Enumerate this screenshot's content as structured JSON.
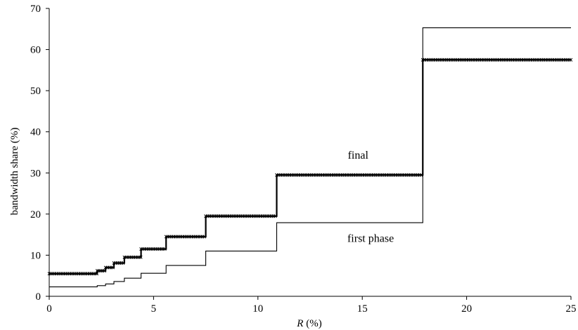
{
  "chart_data": {
    "type": "line",
    "xlabel_italic": "R",
    "xlabel_suffix": " (%)",
    "ylabel": "bandwidth share (%)",
    "xlim": [
      0,
      25
    ],
    "ylim": [
      0,
      70
    ],
    "xticks": [
      "0",
      "5",
      "10",
      "15",
      "20",
      "25"
    ],
    "yticks": [
      "0",
      "10",
      "20",
      "30",
      "40",
      "50",
      "60",
      "70"
    ],
    "grid": false,
    "series": [
      {
        "name": "final",
        "style": "step",
        "marker": "cross",
        "line_width": "thick",
        "points": [
          [
            0,
            5.5
          ],
          [
            2.3,
            5.5
          ],
          [
            2.3,
            6.2
          ],
          [
            2.7,
            6.2
          ],
          [
            2.7,
            7.0
          ],
          [
            3.1,
            7.0
          ],
          [
            3.1,
            8.1
          ],
          [
            3.6,
            8.1
          ],
          [
            3.6,
            9.5
          ],
          [
            4.4,
            9.5
          ],
          [
            4.4,
            11.5
          ],
          [
            5.6,
            11.5
          ],
          [
            5.6,
            14.5
          ],
          [
            7.5,
            14.5
          ],
          [
            7.5,
            19.5
          ],
          [
            10.9,
            19.5
          ],
          [
            10.9,
            29.5
          ],
          [
            17.9,
            29.5
          ],
          [
            17.9,
            57.5
          ],
          [
            25,
            57.5
          ]
        ]
      },
      {
        "name": "first phase",
        "style": "step",
        "marker": "none",
        "line_width": "thin",
        "points": [
          [
            0,
            2.3
          ],
          [
            2.3,
            2.3
          ],
          [
            2.3,
            2.6
          ],
          [
            2.7,
            2.6
          ],
          [
            2.7,
            3.0
          ],
          [
            3.1,
            3.0
          ],
          [
            3.1,
            3.6
          ],
          [
            3.6,
            3.6
          ],
          [
            3.6,
            4.4
          ],
          [
            4.4,
            4.4
          ],
          [
            4.4,
            5.6
          ],
          [
            5.6,
            5.6
          ],
          [
            5.6,
            7.5
          ],
          [
            7.5,
            7.5
          ],
          [
            7.5,
            11.0
          ],
          [
            10.9,
            11.0
          ],
          [
            10.9,
            17.9
          ],
          [
            17.9,
            17.9
          ],
          [
            17.9,
            65.3
          ],
          [
            25,
            65.3
          ]
        ]
      }
    ],
    "annotations": [
      {
        "text": "final",
        "x": 14.8,
        "y": 33.5
      },
      {
        "text": "first phase",
        "x": 15.4,
        "y": 13.2
      }
    ]
  }
}
